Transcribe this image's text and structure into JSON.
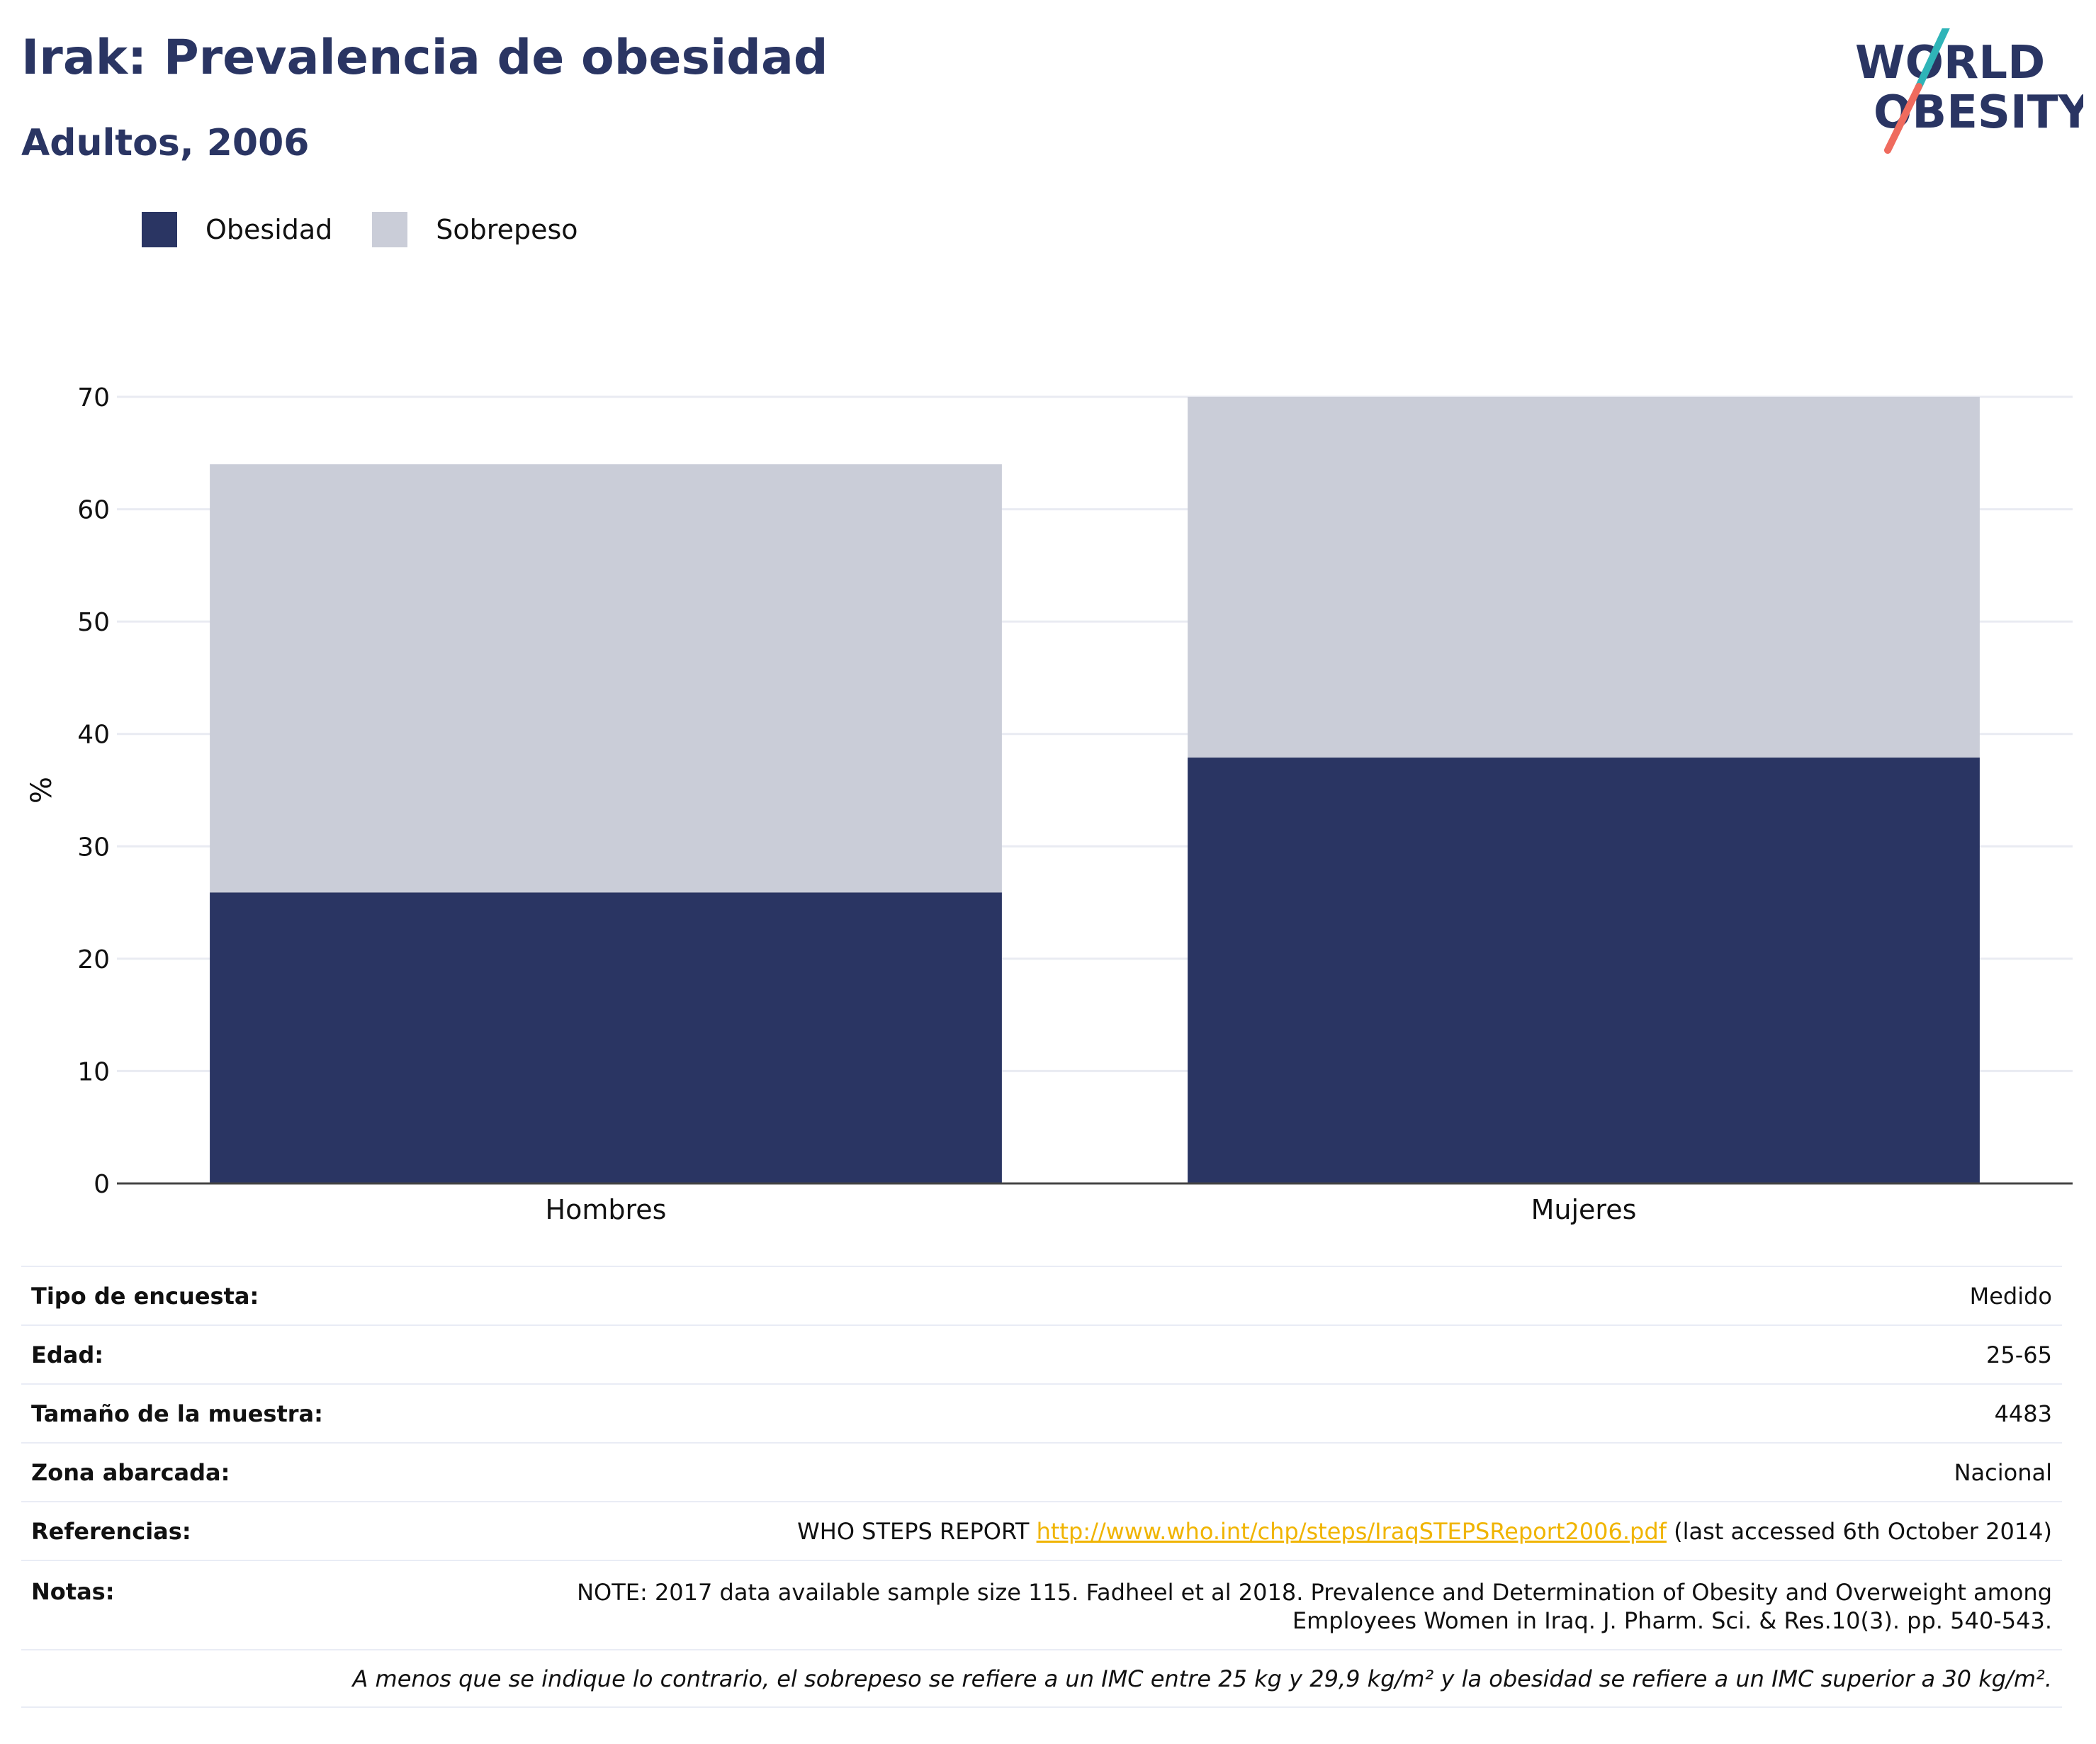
{
  "header": {
    "title": "Irak: Prevalencia de obesidad",
    "subtitle": "Adultos, 2006",
    "logo_line1": "WORLD",
    "logo_line2": "OBESITY"
  },
  "colors": {
    "obesidad": "#2a3563",
    "sobrepeso": "#cacdd8",
    "brand_navy": "#2a3563",
    "logo_teal": "#2fb4b8",
    "logo_coral": "#ef6b5e",
    "link": "#f0b400"
  },
  "chart_data": {
    "type": "bar",
    "stacked": true,
    "categories": [
      "Hombres",
      "Mujeres"
    ],
    "series": [
      {
        "name": "Obesidad",
        "values": [
          25.9,
          37.9
        ]
      },
      {
        "name": "Sobrepeso",
        "values": [
          38.1,
          32.1
        ]
      }
    ],
    "ylabel": "%",
    "xlabel": "",
    "ylim": [
      0,
      70
    ],
    "yticks": [
      0,
      10,
      20,
      30,
      40,
      50,
      60,
      70
    ],
    "grid": true,
    "legend_position": "top-left"
  },
  "info": {
    "survey_type": {
      "label": "Tipo de encuesta:",
      "value": "Medido"
    },
    "age": {
      "label": "Edad:",
      "value": "25-65"
    },
    "sample_size": {
      "label": "Tamaño de la muestra:",
      "value": "4483"
    },
    "area": {
      "label": "Zona abarcada:",
      "value": "Nacional"
    },
    "references": {
      "label": "Referencias:",
      "prefix": "WHO STEPS REPORT ",
      "link": "http://www.who.int/chp/steps/IraqSTEPSReport2006.pdf",
      "suffix": " (last accessed 6th October 2014)"
    },
    "notes": {
      "label": "Notas:",
      "line1": "NOTE: 2017 data available sample size 115. Fadheel et al 2018. Prevalence and Determination of Obesity and Overweight among",
      "line2": "Employees Women in Iraq. J. Pharm. Sci. & Res.10(3). pp. 540-543."
    },
    "footnote": "A menos que se indique lo contrario, el sobrepeso se refiere a un IMC entre 25 kg y 29,9 kg/m² y la obesidad se refiere a un IMC superior a 30 kg/m²."
  }
}
